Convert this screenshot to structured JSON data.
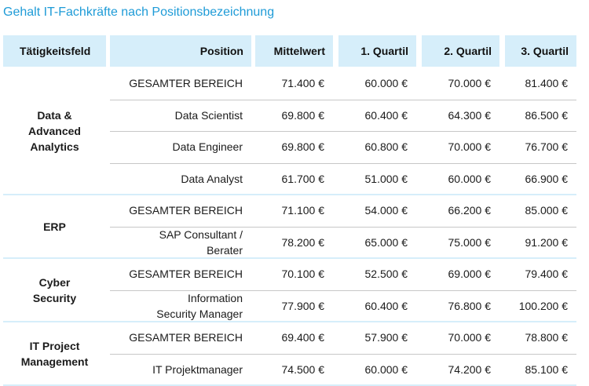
{
  "title": "Gehalt IT-Fachkräfte nach Positionsbezeichnung",
  "headers": [
    "Tätigkeitsfeld",
    "Position",
    "Mittelwert",
    "1. Quartil",
    "2. Quartil",
    "3. Quartil"
  ],
  "groups": [
    {
      "area": "Data &\nAdvanced\nAnalytics",
      "rows": [
        {
          "position": "GESAMTER BEREICH",
          "mittelwert": "71.400 €",
          "q1": "60.000 €",
          "q2": "70.000 €",
          "q3": "81.400 €"
        },
        {
          "position": "Data Scientist",
          "mittelwert": "69.800 €",
          "q1": "60.400 €",
          "q2": "64.300 €",
          "q3": "86.500 €"
        },
        {
          "position": "Data Engineer",
          "mittelwert": "69.800 €",
          "q1": "60.800 €",
          "q2": "70.000 €",
          "q3": "76.700 €"
        },
        {
          "position": "Data Analyst",
          "mittelwert": "61.700 €",
          "q1": "51.000 €",
          "q2": "60.000 €",
          "q3": "66.900 €"
        }
      ]
    },
    {
      "area": "ERP",
      "rows": [
        {
          "position": "GESAMTER BEREICH",
          "mittelwert": "71.100 €",
          "q1": "54.000 €",
          "q2": "66.200 €",
          "q3": "85.000 €"
        },
        {
          "position": "SAP Consultant /\nBerater",
          "mittelwert": "78.200 €",
          "q1": "65.000 €",
          "q2": "75.000 €",
          "q3": "91.200 €"
        }
      ]
    },
    {
      "area": "Cyber\nSecurity",
      "rows": [
        {
          "position": "GESAMTER BEREICH",
          "mittelwert": "70.100 €",
          "q1": "52.500 €",
          "q2": "69.000 €",
          "q3": "79.400 €"
        },
        {
          "position": "Information\nSecurity Manager",
          "mittelwert": "77.900 €",
          "q1": "60.400 €",
          "q2": "76.800 €",
          "q3": "100.200 €"
        }
      ]
    },
    {
      "area": "IT Project\nManagement",
      "rows": [
        {
          "position": "GESAMTER BEREICH",
          "mittelwert": "69.400 €",
          "q1": "57.900 €",
          "q2": "70.000 €",
          "q3": "78.800 €"
        },
        {
          "position": "IT Projektmanager",
          "mittelwert": "74.500 €",
          "q1": "60.000 €",
          "q2": "74.200 €",
          "q3": "85.100 €"
        }
      ]
    }
  ]
}
